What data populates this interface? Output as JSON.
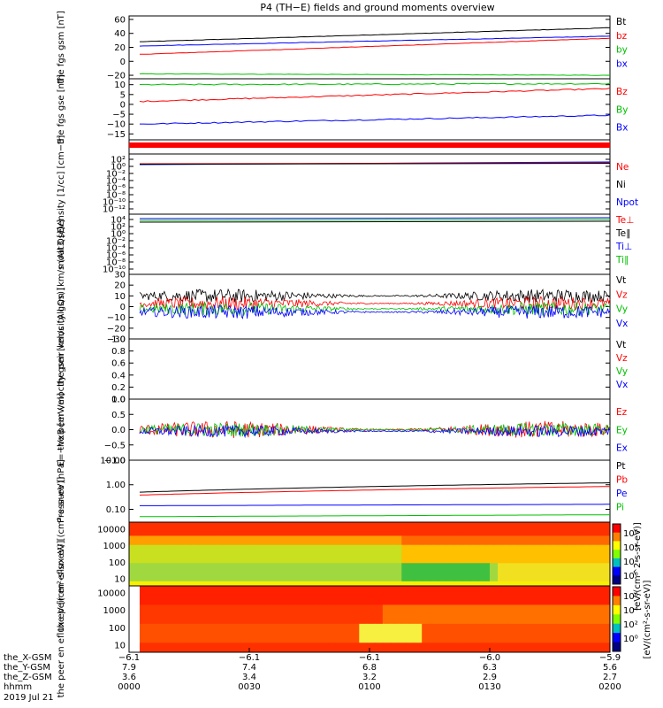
{
  "title": "P4 (TH−E) fields and ground moments overview",
  "colors": {
    "black": "#000000",
    "red": "#ff0000",
    "green": "#00c000",
    "blue": "#0000ff"
  },
  "chart_data": [
    {
      "type": "line",
      "name": "fgs-gsm",
      "ylabel": "the fgs gsm [nT]",
      "ylim": [
        -25,
        65
      ],
      "yticks": [
        "60",
        "40",
        "20",
        "0",
        "−20"
      ],
      "ytick_vals": [
        60,
        40,
        20,
        0,
        -20
      ],
      "series": [
        {
          "name": "Bt",
          "color": "black",
          "start": 28,
          "end": 48
        },
        {
          "name": "bz",
          "color": "red",
          "start": 10,
          "end": 33
        },
        {
          "name": "by",
          "color": "green",
          "start": -18,
          "end": -20
        },
        {
          "name": "bx",
          "color": "blue",
          "start": 22,
          "end": 36
        }
      ],
      "legend": [
        "Bt",
        "bz",
        "by",
        "bx"
      ]
    },
    {
      "type": "line",
      "name": "fgs-gse",
      "ylabel": "the fgs gse [nT]",
      "ylim": [
        -18,
        13
      ],
      "yticks": [
        "15",
        "10",
        "5",
        "0",
        "−5",
        "−10",
        "−15"
      ],
      "ytick_vals": [
        15,
        10,
        5,
        0,
        -5,
        -10,
        -15
      ],
      "series": [
        {
          "name": "Bz",
          "color": "red",
          "start": 1.5,
          "end": 8
        },
        {
          "name": "By",
          "color": "green",
          "start": 10,
          "end": 10.5
        },
        {
          "name": "Bx",
          "color": "blue",
          "start": -10,
          "end": -5.5
        }
      ],
      "legend": [
        "Bz",
        "By",
        "Bx"
      ]
    },
    {
      "type": "line",
      "name": "density",
      "ylabel": "Density [1/cc] [cm−3]",
      "yticks": [
        "10²",
        "10⁰",
        "10⁻²",
        "10⁻⁴",
        "10⁻⁶",
        "10⁻⁸",
        "10⁻¹⁰",
        "10⁻¹²"
      ],
      "legend": [
        "Ne",
        "Ni",
        "Npot"
      ]
    },
    {
      "type": "line",
      "name": "temperature",
      "ylabel": "moat3 [eV]",
      "yticks": [
        "10⁴",
        "10²",
        "10⁰",
        "10⁻²",
        "10⁻⁴",
        "10⁻⁶",
        "10⁻⁸",
        "10⁻¹⁰"
      ],
      "legend": [
        "Te⊥",
        "Te∥",
        "Ti⊥",
        "Ti∥"
      ]
    },
    {
      "type": "line",
      "name": "peir-velocity",
      "ylabel": "the peir velocity gsm [km/s (All Qs)]",
      "ylim": [
        -30,
        30
      ],
      "yticks": [
        "30",
        "20",
        "10",
        "0",
        "−10",
        "−20",
        "−30"
      ],
      "ytick_vals": [
        30,
        20,
        10,
        0,
        -10,
        -20,
        -30
      ],
      "series": [
        {
          "name": "Vt",
          "color": "black",
          "mean": 10,
          "amp": 5
        },
        {
          "name": "Vz",
          "color": "red",
          "mean": 3,
          "amp": 5
        },
        {
          "name": "Vy",
          "color": "green",
          "mean": -2,
          "amp": 5
        },
        {
          "name": "Vx",
          "color": "blue",
          "mean": -5,
          "amp": 5
        }
      ],
      "legend": [
        "Vt",
        "Vz",
        "Vy",
        "Vx"
      ]
    },
    {
      "type": "line",
      "name": "peer-velocity",
      "ylabel": "the peer velocity gsm [km/s (All Qs)]",
      "ylim": [
        0,
        1
      ],
      "yticks": [
        "1.0",
        "0.8",
        "0.6",
        "0.4",
        "0.2",
        "0.0"
      ],
      "ytick_vals": [
        1,
        0.8,
        0.6,
        0.4,
        0.2,
        0
      ],
      "legend": [
        "Vt",
        "Vz",
        "Vy",
        "Vx"
      ]
    },
    {
      "type": "line",
      "name": "exb",
      "ylabel": "E=−VxB [mV/m]",
      "ylim": [
        -1,
        1
      ],
      "yticks": [
        "1.0",
        "0.5",
        "0.0",
        "−0.5",
        "−1.0"
      ],
      "ytick_vals": [
        1,
        0.5,
        0,
        -0.5,
        -1
      ],
      "series": [
        {
          "name": "Ez",
          "color": "red",
          "mean": 0,
          "amp": 0.22
        },
        {
          "name": "Ey",
          "color": "green",
          "mean": 0,
          "amp": 0.18
        },
        {
          "name": "Ex",
          "color": "blue",
          "mean": -0.05,
          "amp": 0.15
        }
      ],
      "legend": [
        "Ez",
        "Ey",
        "Ex"
      ]
    },
    {
      "type": "line",
      "name": "pressure",
      "ylabel": "Pressure [nPa]",
      "scale": "log",
      "ylim": [
        0.03,
        10
      ],
      "yticks": [
        "10.00",
        "1.00",
        "0.10"
      ],
      "ytick_vals": [
        10,
        1,
        0.1
      ],
      "series": [
        {
          "name": "Pt",
          "color": "black",
          "start": 0.5,
          "end": 1.2
        },
        {
          "name": "Pb",
          "color": "red",
          "start": 0.38,
          "end": 0.85
        },
        {
          "name": "Pe",
          "color": "blue",
          "start": 0.14,
          "end": 0.16
        },
        {
          "name": "Pi",
          "color": "green",
          "start": 0.05,
          "end": 0.06
        }
      ],
      "legend": [
        "Pt",
        "Pb",
        "Pe",
        "Pi"
      ]
    },
    {
      "type": "heatmap",
      "name": "peir-spectrogram",
      "ylabel": "the peir en eflux eV [(cm²-s-sr-eV)]",
      "yticks": [
        "10000",
        "1000",
        "100",
        "10"
      ],
      "ytick_vals": [
        10000,
        1000,
        100,
        10
      ]
    },
    {
      "type": "heatmap",
      "name": "peer-spectrogram",
      "ylabel": "the peer en eflux eV [(cm²-s-sr-eV)]",
      "yticks": [
        "10000",
        "1000",
        "100",
        "10"
      ],
      "ytick_vals": [
        10000,
        1000,
        100,
        10
      ]
    }
  ],
  "colorbar": {
    "labels": [
      "10⁶",
      "10⁴",
      "10²",
      "10⁰"
    ],
    "title": "[eV/(cm²-s-sr-eV)]",
    "title2": "[eV/(cm^2-s-sr-eV)]"
  },
  "xaxis": {
    "rows": [
      {
        "label": "the_X-GSM",
        "values": [
          "−6.1",
          "−6.1",
          "−6.1",
          "−6.0",
          "−5.9"
        ]
      },
      {
        "label": "the_Y-GSM",
        "values": [
          "7.9",
          "7.4",
          "6.8",
          "6.3",
          "5.6"
        ]
      },
      {
        "label": "the_Z-GSM",
        "values": [
          "3.6",
          "3.4",
          "3.2",
          "2.9",
          "2.7"
        ]
      },
      {
        "label": "hhmm",
        "values": [
          "0000",
          "0030",
          "0100",
          "0130",
          "0200"
        ]
      }
    ],
    "date": "2019 Jul 21"
  }
}
